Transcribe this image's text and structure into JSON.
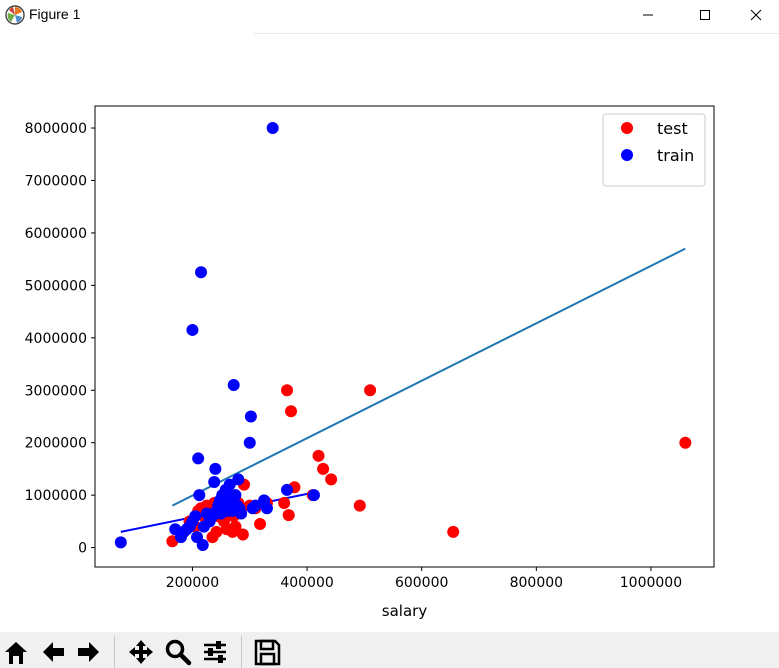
{
  "window": {
    "title": "Figure 1",
    "icons": [
      "matplotlib-logo-icon",
      "minimize-icon",
      "maximize-icon",
      "close-icon"
    ]
  },
  "toolbar": {
    "buttons": [
      "home-icon",
      "back-arrow-icon",
      "forward-arrow-icon",
      "pan-icon",
      "zoom-icon",
      "subplots-config-icon",
      "save-icon"
    ]
  },
  "chart_data": {
    "type": "scatter",
    "title": "",
    "xlabel": "salary",
    "ylabel": "",
    "xlim": [
      30000,
      1110000
    ],
    "ylim": [
      -370000,
      8420000
    ],
    "xticks": [
      200000,
      400000,
      600000,
      800000,
      1000000
    ],
    "xtick_labels": [
      "200000",
      "400000",
      "600000",
      "800000",
      "1000000"
    ],
    "yticks": [
      0,
      1000000,
      2000000,
      3000000,
      4000000,
      5000000,
      6000000,
      7000000,
      8000000
    ],
    "ytick_labels": [
      "0",
      "1000000",
      "2000000",
      "3000000",
      "4000000",
      "5000000",
      "6000000",
      "7000000",
      "8000000"
    ],
    "grid": false,
    "legend": "top-right",
    "series": [
      {
        "name": "test",
        "kind": "scatter",
        "color": "#ff0000",
        "points": [
          [
            165000,
            120000
          ],
          [
            185000,
            300000
          ],
          [
            195000,
            500000
          ],
          [
            205000,
            400000
          ],
          [
            210000,
            700000
          ],
          [
            215000,
            750000
          ],
          [
            220000,
            600000
          ],
          [
            225000,
            800000
          ],
          [
            230000,
            750000
          ],
          [
            235000,
            200000
          ],
          [
            238000,
            850000
          ],
          [
            242000,
            300000
          ],
          [
            245000,
            600000
          ],
          [
            250000,
            750000
          ],
          [
            255000,
            500000
          ],
          [
            258000,
            800000
          ],
          [
            260000,
            350000
          ],
          [
            265000,
            700000
          ],
          [
            270000,
            300000
          ],
          [
            272000,
            600000
          ],
          [
            275000,
            400000
          ],
          [
            280000,
            850000
          ],
          [
            285000,
            750000
          ],
          [
            288000,
            250000
          ],
          [
            290000,
            1200000
          ],
          [
            300000,
            800000
          ],
          [
            310000,
            750000
          ],
          [
            318000,
            450000
          ],
          [
            330000,
            850000
          ],
          [
            360000,
            850000
          ],
          [
            365000,
            3000000
          ],
          [
            368000,
            620000
          ],
          [
            372000,
            2600000
          ],
          [
            378000,
            1150000
          ],
          [
            410000,
            1000000
          ],
          [
            420000,
            1750000
          ],
          [
            428000,
            1500000
          ],
          [
            442000,
            1300000
          ],
          [
            492000,
            800000
          ],
          [
            510000,
            3000000
          ],
          [
            655000,
            300000
          ],
          [
            1060000,
            2000000
          ]
        ]
      },
      {
        "name": "train",
        "kind": "scatter",
        "color": "#0000ff",
        "points": [
          [
            75000,
            100000
          ],
          [
            170000,
            350000
          ],
          [
            180000,
            200000
          ],
          [
            185000,
            300000
          ],
          [
            190000,
            350000
          ],
          [
            195000,
            400000
          ],
          [
            200000,
            500000
          ],
          [
            205000,
            600000
          ],
          [
            208000,
            200000
          ],
          [
            210000,
            1700000
          ],
          [
            212000,
            1000000
          ],
          [
            215000,
            5250000
          ],
          [
            218000,
            50000
          ],
          [
            220000,
            400000
          ],
          [
            225000,
            650000
          ],
          [
            230000,
            500000
          ],
          [
            235000,
            600000
          ],
          [
            238000,
            1250000
          ],
          [
            240000,
            1500000
          ],
          [
            242000,
            700000
          ],
          [
            245000,
            800000
          ],
          [
            248000,
            900000
          ],
          [
            250000,
            650000
          ],
          [
            252000,
            1000000
          ],
          [
            255000,
            750000
          ],
          [
            258000,
            1100000
          ],
          [
            260000,
            850000
          ],
          [
            262000,
            700000
          ],
          [
            265000,
            1200000
          ],
          [
            268000,
            900000
          ],
          [
            270000,
            700000
          ],
          [
            272000,
            3100000
          ],
          [
            275000,
            1000000
          ],
          [
            278000,
            800000
          ],
          [
            280000,
            1300000
          ],
          [
            282000,
            750000
          ],
          [
            285000,
            650000
          ],
          [
            300000,
            2000000
          ],
          [
            302000,
            2500000
          ],
          [
            305000,
            750000
          ],
          [
            310000,
            800000
          ],
          [
            325000,
            900000
          ],
          [
            330000,
            750000
          ],
          [
            340000,
            8000000
          ],
          [
            365000,
            1100000
          ],
          [
            412000,
            1000000
          ],
          [
            200000,
            4150000
          ]
        ]
      },
      {
        "kind": "line",
        "color": "#1f77b4",
        "points": [
          [
            165000,
            800000
          ],
          [
            1060000,
            5700000
          ]
        ]
      },
      {
        "kind": "line",
        "color": "#0000ff",
        "points": [
          [
            75000,
            300000
          ],
          [
            412000,
            1050000
          ]
        ]
      }
    ]
  }
}
